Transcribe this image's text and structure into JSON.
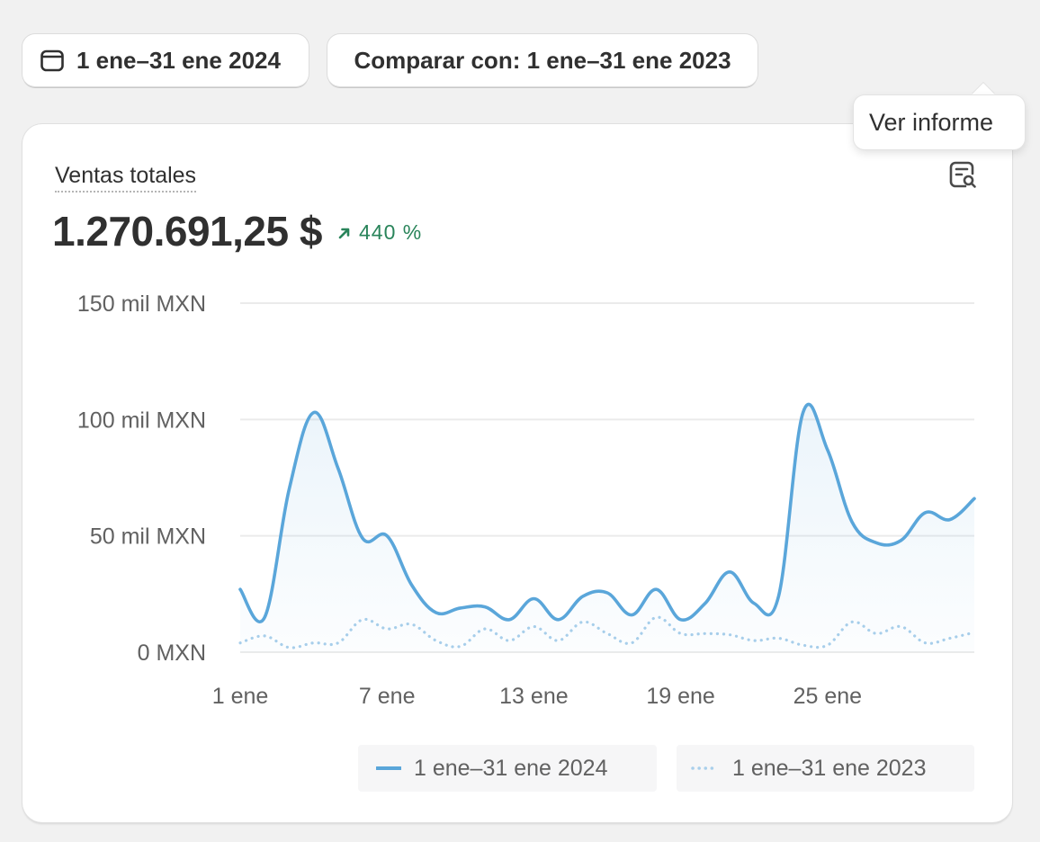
{
  "date_button": {
    "label": "1 ene–31 ene 2024",
    "icon": "calendar-icon"
  },
  "compare_button": {
    "label": "Comparar con: 1 ene–31 ene 2023"
  },
  "card": {
    "title": "Ventas totales",
    "total": "1.270.691,25 $",
    "delta": "440 %",
    "delta_icon": "arrow-up-right-icon",
    "report_icon": "report-search-icon",
    "tooltip": "Ver informe"
  },
  "colors": {
    "current": "#5aa6da",
    "previous": "#a9cfeb",
    "positive": "#29845a"
  },
  "legend": {
    "current": "1 ene–31 ene 2024",
    "previous": "1 ene–31 ene 2023"
  },
  "chart_data": {
    "type": "line",
    "x": [
      "1 ene",
      "2 ene",
      "3 ene",
      "4 ene",
      "5 ene",
      "6 ene",
      "7 ene",
      "8 ene",
      "9 ene",
      "10 ene",
      "11 ene",
      "12 ene",
      "13 ene",
      "14 ene",
      "15 ene",
      "16 ene",
      "17 ene",
      "18 ene",
      "19 ene",
      "20 ene",
      "21 ene",
      "22 ene",
      "23 ene",
      "24 ene",
      "25 ene",
      "26 ene",
      "27 ene",
      "28 ene",
      "29 ene",
      "30 ene",
      "31 ene"
    ],
    "x_ticks": [
      "1 ene",
      "7 ene",
      "13 ene",
      "19 ene",
      "25 ene"
    ],
    "y_ticks": [
      "0 MXN",
      "50 mil MXN",
      "100 mil MXN",
      "150 mil MXN"
    ],
    "ylim": [
      0,
      150000
    ],
    "grid": true,
    "legend_position": "bottom-right",
    "series": [
      {
        "name": "1 ene–31 ene 2024",
        "style": "solid",
        "area": true,
        "values": [
          27000,
          15000,
          70000,
          103000,
          79000,
          49000,
          50000,
          29000,
          17000,
          19000,
          19500,
          14000,
          23000,
          14000,
          24000,
          25500,
          16000,
          27000,
          14000,
          21000,
          34500,
          21000,
          24000,
          103000,
          87000,
          56000,
          47000,
          48000,
          60000,
          57000,
          66000
        ]
      },
      {
        "name": "1 ene–31 ene 2023",
        "style": "dotted",
        "area": false,
        "values": [
          4000,
          7000,
          2000,
          4000,
          4000,
          14000,
          10000,
          12000,
          5000,
          2500,
          10000,
          5000,
          11000,
          5000,
          13000,
          8000,
          4000,
          15000,
          8000,
          8000,
          7500,
          5000,
          6000,
          3000,
          3000,
          13000,
          8000,
          11000,
          4000,
          6000,
          8500
        ]
      }
    ]
  }
}
